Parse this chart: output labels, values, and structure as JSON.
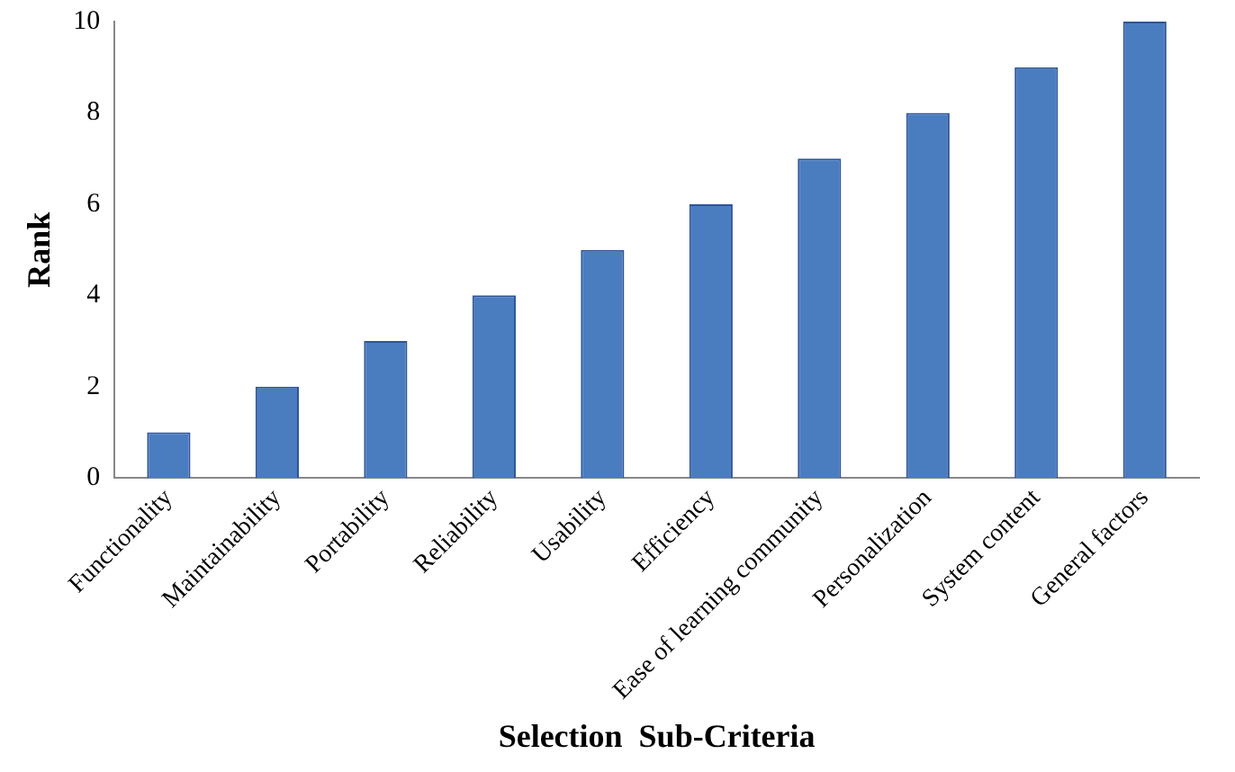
{
  "chart_data": {
    "type": "bar",
    "xlabel": "Selection  Sub-Criteria",
    "ylabel": "Rank",
    "categories": [
      "Functionality",
      "Maintainability",
      "Portability",
      "Reliability",
      "Usability",
      "Efficiency",
      "Ease of learning community",
      "Personalization",
      "System content",
      "General factors"
    ],
    "values": [
      1,
      2,
      3,
      4,
      5,
      6,
      7,
      8,
      9,
      10
    ],
    "color": "#4a7cc0",
    "ylim": [
      0,
      10
    ],
    "yticks": [
      0,
      2,
      4,
      6,
      8,
      10
    ],
    "grid": false,
    "legend": false
  }
}
